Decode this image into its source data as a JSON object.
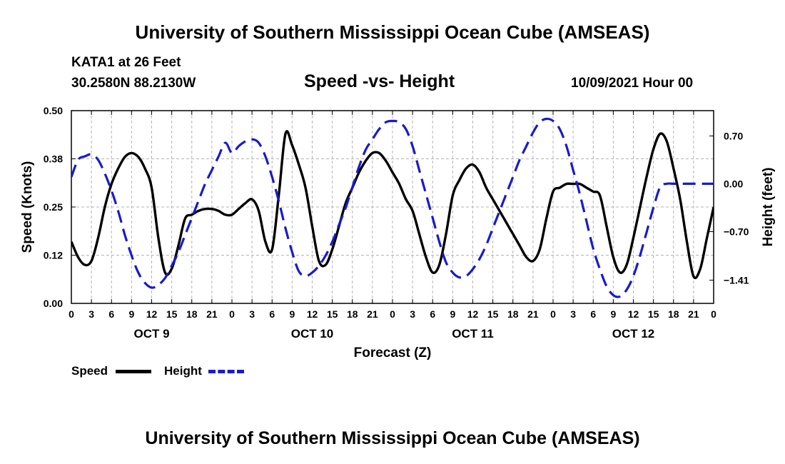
{
  "header": {
    "title": "University of Southern Mississippi Ocean Cube (AMSEAS)",
    "station": "KATA1 at 26 Feet",
    "coords": "30.2580N  88.2130W",
    "chart_title": "Speed -vs- Height",
    "datetime": "10/09/2021 Hour 00"
  },
  "footer": {
    "title": "University of Southern Mississippi Ocean Cube (AMSEAS)"
  },
  "legend": {
    "speed_label": "Speed",
    "height_label": "Height"
  },
  "colors": {
    "speed": "#000000",
    "height": "#1a1acc",
    "grid": "#b4b4b4"
  },
  "chart_data": {
    "type": "line",
    "title": "Speed -vs- Height",
    "xlabel": "Forecast (Z)",
    "ylabel": "Speed (Knots)",
    "y2label": "Height (feet)",
    "x_range": [
      0,
      96
    ],
    "x_ticks": [
      0,
      3,
      6,
      9,
      12,
      15,
      18,
      21,
      24,
      27,
      30,
      33,
      36,
      39,
      42,
      45,
      48,
      51,
      54,
      57,
      60,
      63,
      66,
      69,
      72,
      75,
      78,
      81,
      84,
      87,
      90,
      93,
      96
    ],
    "x_tick_labels": [
      "0",
      "3",
      "6",
      "9",
      "12",
      "15",
      "18",
      "21",
      "0",
      "3",
      "6",
      "9",
      "12",
      "15",
      "18",
      "21",
      "0",
      "3",
      "6",
      "9",
      "12",
      "15",
      "18",
      "21",
      "0",
      "3",
      "6",
      "9",
      "12",
      "15",
      "18",
      "21",
      "0"
    ],
    "day_labels": [
      {
        "hour": 12,
        "label": "OCT 9"
      },
      {
        "hour": 36,
        "label": "OCT 10"
      },
      {
        "hour": 60,
        "label": "OCT 11"
      },
      {
        "hour": 84,
        "label": "OCT 12"
      }
    ],
    "y_range": [
      0,
      0.5
    ],
    "y_ticks": [
      0,
      0.125,
      0.25,
      0.375,
      0.5
    ],
    "y_tick_labels": [
      "0.00",
      "0.12",
      "0.25",
      "0.38",
      "0.50"
    ],
    "y2_range": [
      -1.75,
      1.07
    ],
    "y2_ticks": [
      -1.41,
      -0.7,
      0,
      0.7
    ],
    "y2_tick_labels": [
      "−1.41",
      "−0.70",
      "0.00",
      "0.70"
    ],
    "series": [
      {
        "name": "Speed",
        "axis": "left",
        "style": "solid",
        "x": [
          0,
          1,
          2,
          3,
          4,
          5,
          6,
          7,
          8,
          9,
          10,
          11,
          12,
          13,
          14,
          15,
          16,
          17,
          18,
          19,
          20,
          21,
          22,
          23,
          24,
          25,
          26,
          27,
          28,
          29,
          30,
          31,
          32,
          33,
          34,
          35,
          36,
          37,
          38,
          39,
          40,
          41,
          42,
          43,
          44,
          45,
          46,
          47,
          48,
          49,
          50,
          51,
          52,
          53,
          54,
          55,
          56,
          57,
          58,
          59,
          60,
          61,
          62,
          63,
          64,
          65,
          66,
          67,
          68,
          69,
          70,
          71,
          72,
          73,
          74,
          75,
          76,
          77,
          78,
          79,
          80,
          81,
          82,
          83,
          84,
          85,
          86,
          87,
          88,
          89,
          90,
          91,
          92,
          93,
          94,
          95,
          96
        ],
        "values": [
          0.16,
          0.12,
          0.1,
          0.11,
          0.17,
          0.25,
          0.31,
          0.35,
          0.38,
          0.39,
          0.38,
          0.35,
          0.3,
          0.17,
          0.08,
          0.09,
          0.15,
          0.22,
          0.23,
          0.24,
          0.245,
          0.245,
          0.24,
          0.23,
          0.23,
          0.245,
          0.26,
          0.27,
          0.24,
          0.16,
          0.14,
          0.28,
          0.44,
          0.41,
          0.36,
          0.3,
          0.2,
          0.11,
          0.1,
          0.14,
          0.2,
          0.26,
          0.3,
          0.34,
          0.37,
          0.39,
          0.39,
          0.37,
          0.34,
          0.31,
          0.27,
          0.24,
          0.18,
          0.12,
          0.08,
          0.1,
          0.18,
          0.28,
          0.32,
          0.35,
          0.36,
          0.34,
          0.3,
          0.27,
          0.24,
          0.21,
          0.18,
          0.15,
          0.12,
          0.11,
          0.14,
          0.22,
          0.29,
          0.3,
          0.31,
          0.31,
          0.31,
          0.3,
          0.29,
          0.28,
          0.2,
          0.12,
          0.08,
          0.1,
          0.17,
          0.25,
          0.33,
          0.4,
          0.44,
          0.42,
          0.35,
          0.27,
          0.16,
          0.07,
          0.09,
          0.17,
          0.25
        ]
      },
      {
        "name": "Height",
        "axis": "right",
        "style": "dashed",
        "x": [
          0,
          1,
          2,
          3,
          4,
          5,
          6,
          7,
          8,
          9,
          10,
          11,
          12,
          13,
          14,
          15,
          16,
          17,
          18,
          19,
          20,
          21,
          22,
          23,
          24,
          25,
          26,
          27,
          28,
          29,
          30,
          31,
          32,
          33,
          34,
          35,
          36,
          37,
          38,
          39,
          40,
          41,
          42,
          43,
          44,
          45,
          46,
          47,
          48,
          49,
          50,
          51,
          52,
          53,
          54,
          55,
          56,
          57,
          58,
          59,
          60,
          61,
          62,
          63,
          64,
          65,
          66,
          67,
          68,
          69,
          70,
          71,
          72,
          73,
          74,
          75,
          76,
          77,
          78,
          79,
          80,
          81,
          82,
          83,
          84,
          85,
          86,
          87,
          88,
          89,
          90,
          91,
          92,
          93,
          94,
          95,
          96
        ],
        "values": [
          0.1,
          0.35,
          0.4,
          0.43,
          0.35,
          0.15,
          -0.1,
          -0.4,
          -0.75,
          -1.05,
          -1.3,
          -1.45,
          -1.52,
          -1.48,
          -1.38,
          -1.2,
          -1.0,
          -0.75,
          -0.5,
          -0.25,
          0.0,
          0.2,
          0.4,
          0.6,
          0.45,
          0.55,
          0.62,
          0.65,
          0.6,
          0.4,
          0.1,
          -0.25,
          -0.65,
          -1.0,
          -1.28,
          -1.35,
          -1.3,
          -1.2,
          -1.05,
          -0.85,
          -0.6,
          -0.35,
          -0.05,
          0.25,
          0.5,
          0.65,
          0.8,
          0.9,
          0.92,
          0.9,
          0.8,
          0.55,
          0.2,
          -0.15,
          -0.5,
          -0.85,
          -1.15,
          -1.3,
          -1.37,
          -1.35,
          -1.25,
          -1.1,
          -0.9,
          -0.65,
          -0.4,
          -0.15,
          0.1,
          0.35,
          0.55,
          0.75,
          0.9,
          0.95,
          0.92,
          0.8,
          0.55,
          0.2,
          -0.15,
          -0.55,
          -0.95,
          -1.25,
          -1.5,
          -1.63,
          -1.65,
          -1.55,
          -1.35,
          -1.05,
          -0.7,
          -0.35,
          -0.05,
          0.0,
          0.0,
          0.0,
          0.0,
          0.0,
          0.0,
          0.0,
          0.0
        ]
      }
    ]
  }
}
